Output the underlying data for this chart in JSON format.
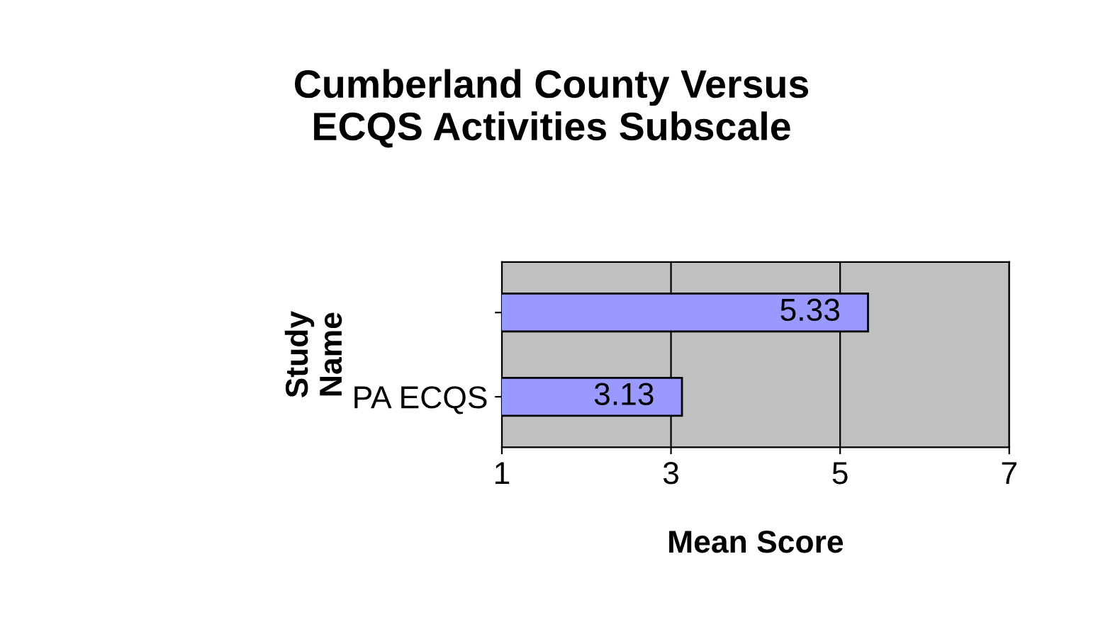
{
  "chart_data": {
    "type": "bar",
    "orientation": "horizontal",
    "title": "Cumberland County Versus\nECQS Activities Subscale",
    "xlabel": "Mean Score",
    "ylabel": "Study\nName",
    "categories": [
      null,
      "PA ECQS"
    ],
    "values": [
      5.33,
      3.13
    ],
    "color": "#9999ff",
    "data_labels": true,
    "xlim": [
      1,
      7
    ],
    "xticks": [
      1,
      3,
      5,
      7
    ],
    "grid": "x"
  }
}
